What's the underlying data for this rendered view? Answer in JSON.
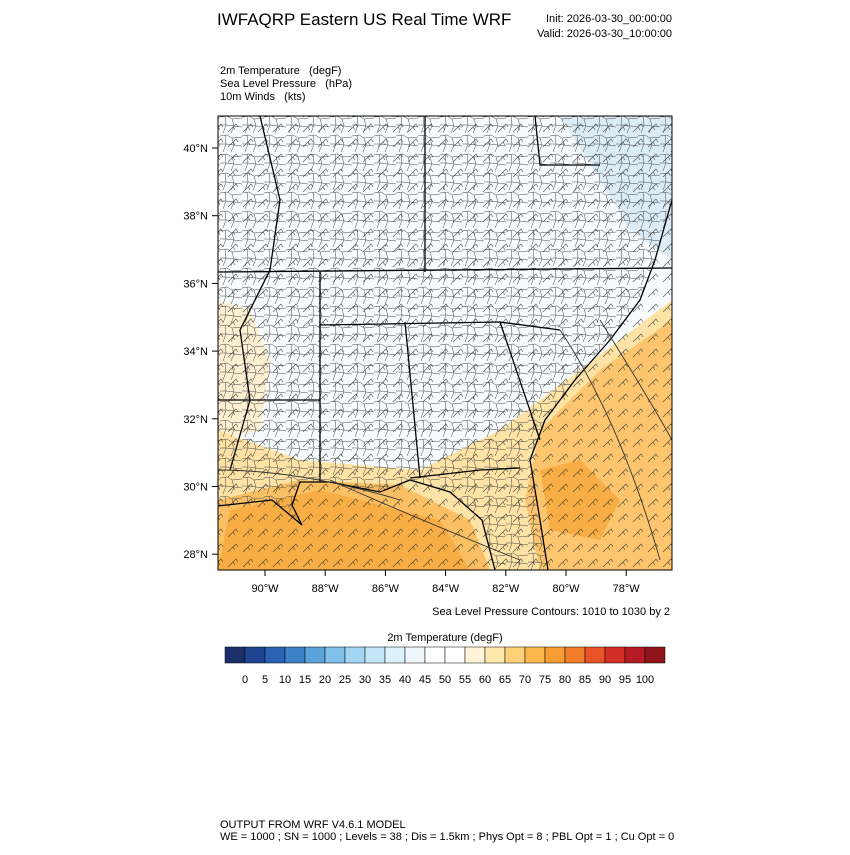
{
  "header": {
    "title": "IWFAQRP Eastern US Real Time WRF",
    "init": "Init: 2026-03-30_00:00:00",
    "valid": "Valid: 2026-03-30_10:00:00"
  },
  "fields": [
    "2m Temperature   (degF)",
    "Sea Level Pressure   (hPa)",
    "10m Winds   (kts)"
  ],
  "map": {
    "lat_labels": [
      "40°N",
      "38°N",
      "36°N",
      "34°N",
      "32°N",
      "30°N",
      "28°N"
    ],
    "lon_labels": [
      "90°W",
      "88°W",
      "86°W",
      "84°W",
      "82°W",
      "80°W",
      "78°W"
    ]
  },
  "contour_note": "Sea Level Pressure Contours: 1010 to 1030 by 2",
  "colorbar": {
    "title": "2m Temperature  (degF)",
    "labels": [
      0,
      5,
      10,
      15,
      20,
      25,
      30,
      35,
      40,
      45,
      50,
      55,
      60,
      65,
      70,
      75,
      80,
      85,
      90,
      95,
      100
    ],
    "colors": [
      "#1d2f6b",
      "#1f4593",
      "#2b62b3",
      "#3d82c9",
      "#5aa3db",
      "#80bfe8",
      "#a3d6f2",
      "#c3e6f7",
      "#ddf1fa",
      "#eef8fc",
      "#ffffff",
      "#ffffff",
      "#fff3d8",
      "#fee7ab",
      "#fdd27a",
      "#fbb64c",
      "#f89c33",
      "#f37d2a",
      "#e85428",
      "#d42f27",
      "#b51b22",
      "#8f1419"
    ]
  },
  "footer": {
    "line1": "OUTPUT FROM WRF V4.6.1 MODEL",
    "line2": "WE = 1000 ; SN = 1000 ; Levels = 38 ; Dis = 1.5km ; Phys Opt = 8 ; PBL Opt = 1 ; Cu Opt = 0"
  }
}
